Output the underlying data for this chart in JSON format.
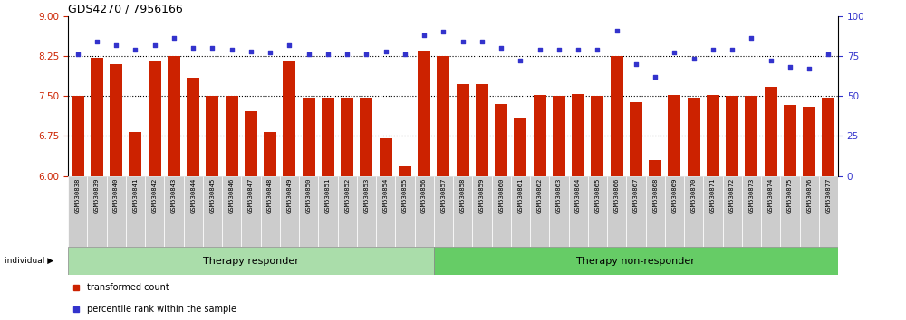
{
  "title": "GDS4270 / 7956166",
  "samples": [
    "GSM530838",
    "GSM530839",
    "GSM530840",
    "GSM530841",
    "GSM530842",
    "GSM530843",
    "GSM530844",
    "GSM530845",
    "GSM530846",
    "GSM530847",
    "GSM530848",
    "GSM530849",
    "GSM530850",
    "GSM530851",
    "GSM530852",
    "GSM530853",
    "GSM530854",
    "GSM530855",
    "GSM530856",
    "GSM530857",
    "GSM530858",
    "GSM530859",
    "GSM530860",
    "GSM530861",
    "GSM530862",
    "GSM530863",
    "GSM530864",
    "GSM530865",
    "GSM530866",
    "GSM530867",
    "GSM530868",
    "GSM530869",
    "GSM530870",
    "GSM530871",
    "GSM530872",
    "GSM530873",
    "GSM530874",
    "GSM530875",
    "GSM530876",
    "GSM530877"
  ],
  "bar_values_left": [
    7.5,
    8.22,
    8.1,
    6.83,
    8.15,
    8.25,
    7.85,
    7.5,
    7.5,
    7.22,
    6.83,
    8.17,
    7.47,
    7.47,
    7.47,
    7.47,
    6.7,
    6.18,
    8.35,
    8.25,
    7.72,
    7.72,
    7.35,
    7.1,
    7.52,
    7.5,
    7.53,
    7.5,
    8.25,
    7.38,
    6.3,
    7.52,
    7.47,
    7.52,
    7.5,
    7.5,
    7.68,
    7.33,
    7.3,
    7.47
  ],
  "dot_values": [
    76,
    84,
    82,
    79,
    82,
    86,
    80,
    80,
    79,
    78,
    77,
    82,
    76,
    76,
    76,
    76,
    78,
    76,
    88,
    90,
    84,
    84,
    80,
    72,
    79,
    79,
    79,
    79,
    91,
    70,
    62,
    77,
    73,
    79,
    79,
    86,
    72,
    68,
    67,
    76
  ],
  "group1_count": 19,
  "group2_count": 21,
  "group1_label": "Therapy responder",
  "group2_label": "Therapy non-responder",
  "ylim_left": [
    6,
    9
  ],
  "ylim_right": [
    0,
    100
  ],
  "yticks_left": [
    6,
    6.75,
    7.5,
    8.25,
    9
  ],
  "yticks_right": [
    0,
    25,
    50,
    75,
    100
  ],
  "bar_color": "#cc2200",
  "dot_color": "#3333cc",
  "group1_color": "#aaddaa",
  "group2_color": "#66cc66",
  "tick_label_bg": "#cccccc",
  "bg_color": "#ffffff"
}
